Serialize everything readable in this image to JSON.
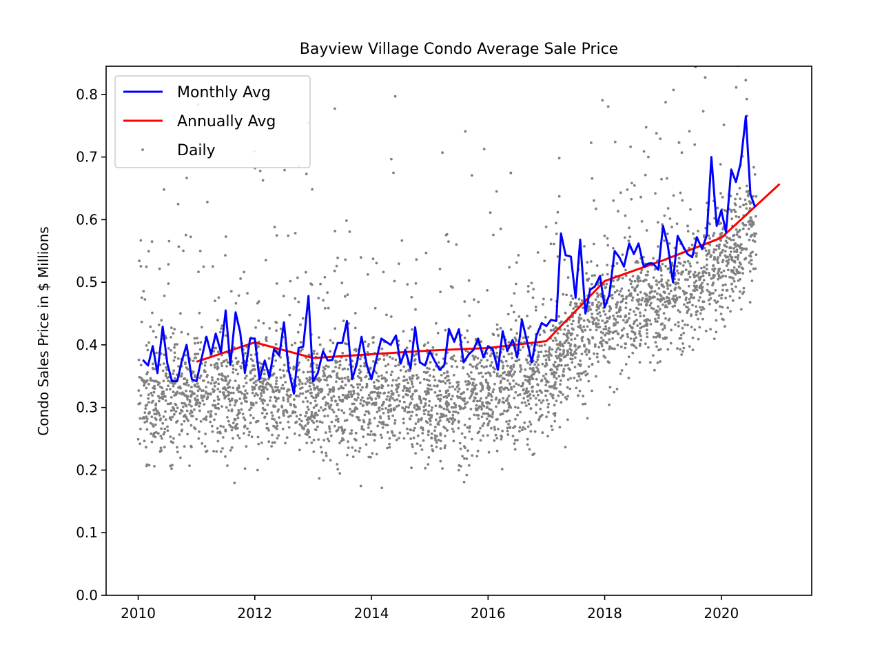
{
  "chart_data": {
    "type": "line",
    "title": "Bayview Village Condo Average Sale Price",
    "xlabel": "",
    "ylabel": "Condo Sales Price in $ Millions",
    "xlim": [
      2009.45,
      2021.55
    ],
    "ylim": [
      0.0,
      0.845
    ],
    "x_ticks": [
      2010,
      2012,
      2014,
      2016,
      2018,
      2020
    ],
    "y_ticks": [
      0.0,
      0.1,
      0.2,
      0.3,
      0.4,
      0.5,
      0.6,
      0.7,
      0.8
    ],
    "x_tick_labels": [
      "2010",
      "2012",
      "2014",
      "2016",
      "2018",
      "2020"
    ],
    "y_tick_labels": [
      "0.0",
      "0.1",
      "0.2",
      "0.3",
      "0.4",
      "0.5",
      "0.6",
      "0.7",
      "0.8"
    ],
    "grid": false,
    "legend_position": "top-left",
    "legend": [
      {
        "label": "Monthly Avg",
        "color": "#0000ff",
        "kind": "line"
      },
      {
        "label": "Annually Avg",
        "color": "#ff0000",
        "kind": "line"
      },
      {
        "label": "Daily",
        "color": "#808080",
        "kind": "dots"
      }
    ],
    "series": [
      {
        "name": "Monthly Avg",
        "color": "#0000ff",
        "x": [
          2010.08,
          2010.17,
          2010.25,
          2010.33,
          2010.42,
          2010.5,
          2010.58,
          2010.67,
          2010.75,
          2010.83,
          2010.92,
          2011.0,
          2011.08,
          2011.17,
          2011.25,
          2011.33,
          2011.42,
          2011.5,
          2011.58,
          2011.67,
          2011.75,
          2011.83,
          2011.92,
          2012.0,
          2012.08,
          2012.17,
          2012.25,
          2012.33,
          2012.42,
          2012.5,
          2012.58,
          2012.67,
          2012.75,
          2012.83,
          2012.92,
          2013.0,
          2013.08,
          2013.17,
          2013.25,
          2013.33,
          2013.42,
          2013.5,
          2013.58,
          2013.67,
          2013.75,
          2013.83,
          2013.92,
          2014.0,
          2014.08,
          2014.17,
          2014.25,
          2014.33,
          2014.42,
          2014.5,
          2014.58,
          2014.67,
          2014.75,
          2014.83,
          2014.92,
          2015.0,
          2015.08,
          2015.17,
          2015.25,
          2015.33,
          2015.42,
          2015.5,
          2015.58,
          2015.67,
          2015.75,
          2015.83,
          2015.92,
          2016.0,
          2016.08,
          2016.17,
          2016.25,
          2016.33,
          2016.42,
          2016.5,
          2016.58,
          2016.67,
          2016.75,
          2016.83,
          2016.92,
          2017.0,
          2017.08,
          2017.17,
          2017.25,
          2017.33,
          2017.42,
          2017.5,
          2017.58,
          2017.67,
          2017.75,
          2017.83,
          2017.92,
          2018.0,
          2018.08,
          2018.17,
          2018.25,
          2018.33,
          2018.42,
          2018.5,
          2018.58,
          2018.67,
          2018.75,
          2018.83,
          2018.92,
          2019.0,
          2019.08,
          2019.17,
          2019.25,
          2019.33,
          2019.42,
          2019.5,
          2019.58,
          2019.67,
          2019.75,
          2019.83,
          2019.92,
          2020.0,
          2020.08,
          2020.17,
          2020.25,
          2020.33,
          2020.42,
          2020.5,
          2020.58
        ],
        "y": [
          0.376,
          0.367,
          0.398,
          0.355,
          0.429,
          0.37,
          0.342,
          0.342,
          0.375,
          0.4,
          0.345,
          0.342,
          0.375,
          0.413,
          0.385,
          0.418,
          0.388,
          0.455,
          0.368,
          0.452,
          0.42,
          0.355,
          0.41,
          0.41,
          0.345,
          0.375,
          0.348,
          0.393,
          0.383,
          0.436,
          0.36,
          0.322,
          0.395,
          0.397,
          0.478,
          0.342,
          0.355,
          0.39,
          0.375,
          0.376,
          0.403,
          0.403,
          0.438,
          0.345,
          0.37,
          0.413,
          0.368,
          0.345,
          0.375,
          0.41,
          0.405,
          0.4,
          0.415,
          0.37,
          0.392,
          0.362,
          0.428,
          0.372,
          0.367,
          0.39,
          0.375,
          0.36,
          0.368,
          0.425,
          0.405,
          0.425,
          0.372,
          0.385,
          0.392,
          0.41,
          0.38,
          0.398,
          0.393,
          0.36,
          0.422,
          0.39,
          0.408,
          0.38,
          0.44,
          0.405,
          0.372,
          0.415,
          0.435,
          0.43,
          0.44,
          0.438,
          0.578,
          0.543,
          0.541,
          0.475,
          0.568,
          0.45,
          0.488,
          0.493,
          0.51,
          0.46,
          0.48,
          0.55,
          0.54,
          0.525,
          0.562,
          0.545,
          0.562,
          0.525,
          0.53,
          0.53,
          0.52,
          0.59,
          0.56,
          0.5,
          0.574,
          0.56,
          0.545,
          0.54,
          0.572,
          0.553,
          0.575,
          0.7,
          0.59,
          0.615,
          0.58,
          0.68,
          0.66,
          0.69,
          0.765,
          0.64,
          0.62
        ]
      },
      {
        "name": "Annually Avg",
        "color": "#ff0000",
        "x": [
          2011.0,
          2012.0,
          2013.0,
          2014.0,
          2015.0,
          2016.0,
          2017.0,
          2018.0,
          2019.0,
          2020.0,
          2021.0
        ],
        "y": [
          0.373,
          0.404,
          0.379,
          0.385,
          0.391,
          0.395,
          0.406,
          0.502,
          0.535,
          0.571,
          0.657
        ]
      },
      {
        "name": "Daily",
        "color": "#808080",
        "kind": "scatter",
        "x_range": [
          2010.0,
          2020.6
        ],
        "approx_points": 4000,
        "description_trend": [
          [
            2010.0,
            0.3
          ],
          [
            2011.0,
            0.32
          ],
          [
            2012.0,
            0.32
          ],
          [
            2013.0,
            0.31
          ],
          [
            2014.0,
            0.31
          ],
          [
            2015.0,
            0.31
          ],
          [
            2016.0,
            0.32
          ],
          [
            2017.0,
            0.36
          ],
          [
            2017.5,
            0.4
          ],
          [
            2018.0,
            0.44
          ],
          [
            2019.0,
            0.47
          ],
          [
            2020.0,
            0.53
          ],
          [
            2020.6,
            0.58
          ]
        ]
      }
    ]
  }
}
